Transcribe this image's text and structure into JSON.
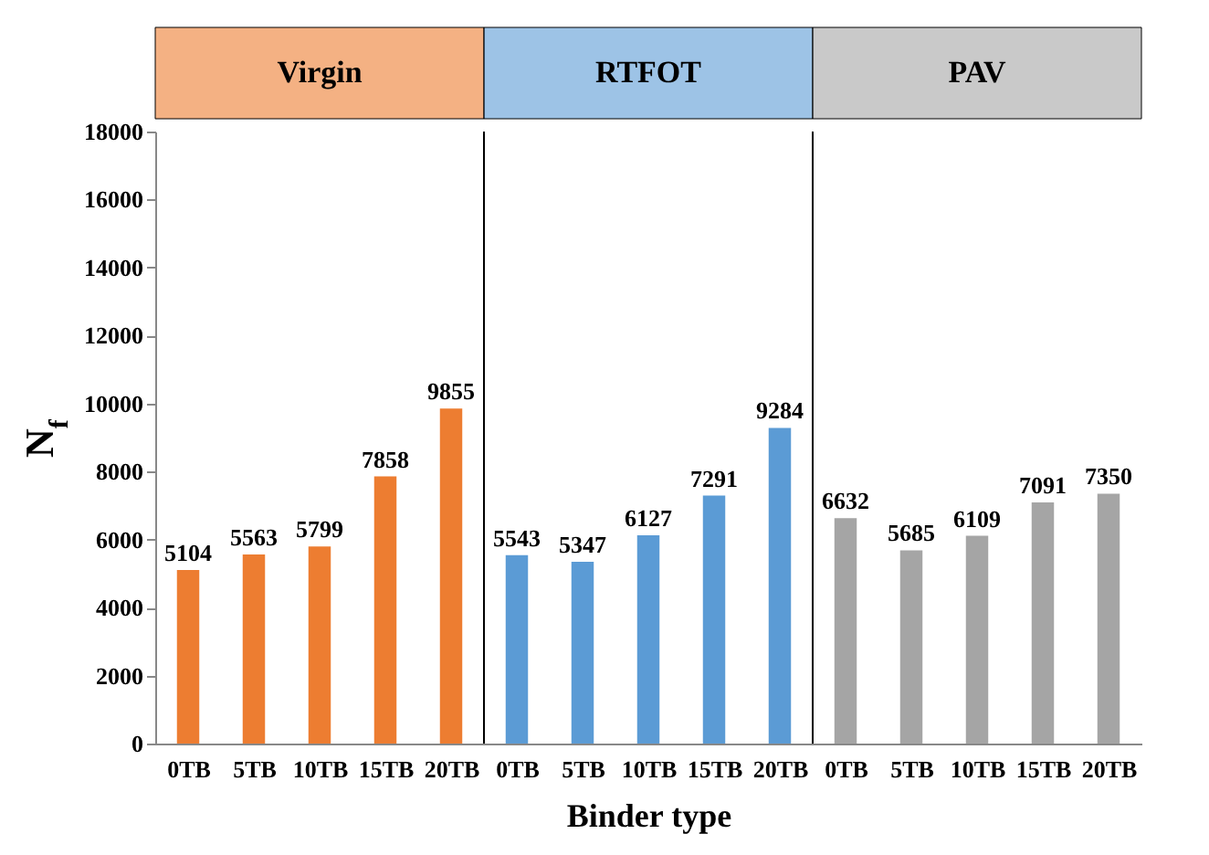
{
  "chart_data": {
    "type": "bar",
    "xlabel": "Binder type",
    "ylabel": "N$_{f}$",
    "categories": [
      "0TB",
      "5TB",
      "10TB",
      "15TB",
      "20TB",
      "0TB",
      "5TB",
      "10TB",
      "15TB",
      "20TB",
      "0TB",
      "5TB",
      "10TB",
      "15TB",
      "20TB"
    ],
    "series": [
      {
        "name": "Virgin",
        "color": "#ed7d31",
        "values": [
          5104,
          5563,
          5799,
          7858,
          9855,
          null,
          null,
          null,
          null,
          null,
          null,
          null,
          null,
          null,
          null
        ]
      },
      {
        "name": "RTFOT",
        "color": "#5b9bd5",
        "values": [
          null,
          null,
          null,
          null,
          null,
          5543,
          5347,
          6127,
          7291,
          9284,
          null,
          null,
          null,
          null,
          null
        ]
      },
      {
        "name": "PAV",
        "color": "#a5a5a5",
        "values": [
          null,
          null,
          null,
          null,
          null,
          null,
          null,
          null,
          null,
          null,
          6632,
          5685,
          6109,
          7091,
          7350
        ]
      }
    ],
    "ylim": [
      0,
      18000
    ],
    "yticks": [
      0,
      2000,
      4000,
      6000,
      8000,
      10000,
      12000,
      14000,
      16000,
      18000
    ],
    "data_labels": true
  }
}
